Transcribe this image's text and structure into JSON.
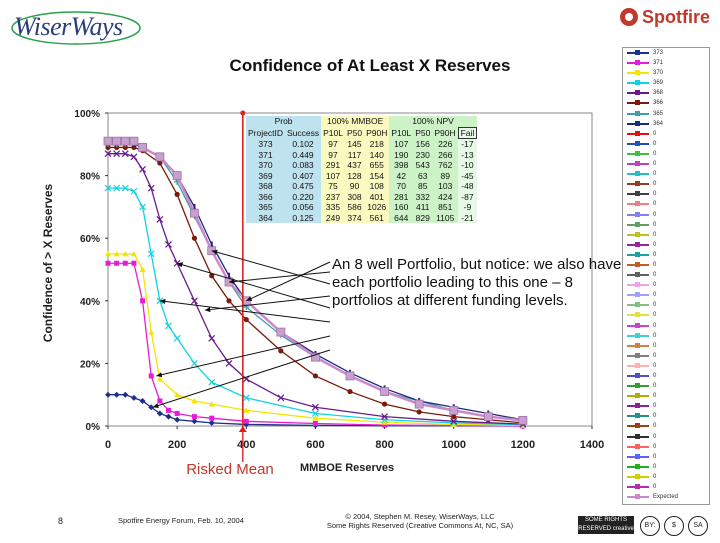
{
  "header": {
    "left_logo": "WiserWays",
    "right_logo": "Spotfire"
  },
  "chart_data": {
    "type": "line",
    "title": "Confidence of At Least X Reserves",
    "xlabel": "MMBOE Reserves",
    "ylabel": "Confidence of > X Reserves",
    "xlim": [
      0,
      1400
    ],
    "ylim": [
      0,
      100
    ],
    "x_ticks": [
      "0",
      "200",
      "400",
      "600",
      "800",
      "1000",
      "1200",
      "1400"
    ],
    "y_ticks": [
      "0%",
      "20%",
      "40%",
      "60%",
      "80%",
      "100%"
    ],
    "marker_line_x": 390,
    "series": [
      {
        "name": "373",
        "color": "#1f2f8c",
        "values": [
          [
            0,
            10
          ],
          [
            25,
            10
          ],
          [
            50,
            10
          ],
          [
            75,
            9
          ],
          [
            100,
            8
          ],
          [
            125,
            6
          ],
          [
            150,
            4
          ],
          [
            175,
            3
          ],
          [
            200,
            2
          ],
          [
            250,
            1.5
          ],
          [
            300,
            1
          ],
          [
            400,
            0.5
          ],
          [
            600,
            0.2
          ],
          [
            800,
            0.1
          ],
          [
            1200,
            0
          ]
        ]
      },
      {
        "name": "371",
        "color": "#e81bd8",
        "values": [
          [
            0,
            52
          ],
          [
            25,
            52
          ],
          [
            50,
            52
          ],
          [
            75,
            52
          ],
          [
            100,
            40
          ],
          [
            125,
            16
          ],
          [
            150,
            8
          ],
          [
            175,
            5
          ],
          [
            200,
            4
          ],
          [
            250,
            3
          ],
          [
            300,
            2.5
          ],
          [
            400,
            1.5
          ],
          [
            600,
            0.8
          ],
          [
            800,
            0.3
          ],
          [
            1200,
            0
          ]
        ]
      },
      {
        "name": "370",
        "color": "#f2e600",
        "values": [
          [
            0,
            55
          ],
          [
            25,
            55
          ],
          [
            50,
            55
          ],
          [
            75,
            55
          ],
          [
            100,
            50
          ],
          [
            125,
            30
          ],
          [
            150,
            15
          ],
          [
            200,
            10
          ],
          [
            250,
            8
          ],
          [
            300,
            7
          ],
          [
            400,
            5
          ],
          [
            600,
            2.5
          ],
          [
            800,
            1.2
          ],
          [
            1000,
            0.5
          ],
          [
            1200,
            0.2
          ]
        ]
      },
      {
        "name": "369",
        "color": "#11d3e0",
        "values": [
          [
            0,
            76
          ],
          [
            25,
            76
          ],
          [
            50,
            76
          ],
          [
            75,
            75
          ],
          [
            100,
            70
          ],
          [
            125,
            55
          ],
          [
            150,
            40
          ],
          [
            175,
            32
          ],
          [
            200,
            28
          ],
          [
            250,
            20
          ],
          [
            300,
            14
          ],
          [
            400,
            9
          ],
          [
            600,
            4
          ],
          [
            800,
            2
          ],
          [
            1000,
            1
          ],
          [
            1200,
            0.4
          ]
        ]
      },
      {
        "name": "368",
        "color": "#6a1a8a",
        "values": [
          [
            0,
            87
          ],
          [
            25,
            87
          ],
          [
            50,
            87
          ],
          [
            75,
            86
          ],
          [
            100,
            82
          ],
          [
            125,
            76
          ],
          [
            150,
            66
          ],
          [
            175,
            58
          ],
          [
            200,
            52
          ],
          [
            250,
            40
          ],
          [
            300,
            28
          ],
          [
            350,
            20
          ],
          [
            400,
            15
          ],
          [
            500,
            9
          ],
          [
            600,
            6
          ],
          [
            800,
            3
          ],
          [
            1000,
            1.5
          ],
          [
            1200,
            0.6
          ]
        ]
      },
      {
        "name": "366",
        "color": "#7a1a0a",
        "values": [
          [
            0,
            89
          ],
          [
            25,
            89
          ],
          [
            50,
            89
          ],
          [
            75,
            89
          ],
          [
            100,
            88
          ],
          [
            150,
            84
          ],
          [
            200,
            74
          ],
          [
            250,
            60
          ],
          [
            300,
            48
          ],
          [
            350,
            40
          ],
          [
            400,
            34
          ],
          [
            500,
            24
          ],
          [
            600,
            16
          ],
          [
            700,
            11
          ],
          [
            800,
            7
          ],
          [
            900,
            4.5
          ],
          [
            1000,
            3
          ],
          [
            1100,
            2
          ],
          [
            1200,
            1
          ]
        ]
      },
      {
        "name": "365",
        "color": "#3aa0a0",
        "values": [
          [
            0,
            90
          ],
          [
            25,
            90
          ],
          [
            50,
            90
          ],
          [
            75,
            90
          ],
          [
            100,
            89
          ],
          [
            150,
            86
          ],
          [
            200,
            78
          ],
          [
            250,
            67
          ],
          [
            300,
            56
          ],
          [
            350,
            46
          ],
          [
            400,
            38
          ],
          [
            500,
            29
          ],
          [
            600,
            22
          ],
          [
            700,
            16
          ],
          [
            800,
            11
          ],
          [
            900,
            8
          ],
          [
            1000,
            5
          ],
          [
            1100,
            3
          ],
          [
            1200,
            2
          ]
        ]
      },
      {
        "name": "364",
        "color": "#1a2a7a",
        "values": [
          [
            0,
            91
          ],
          [
            25,
            91
          ],
          [
            50,
            91
          ],
          [
            75,
            90
          ],
          [
            100,
            89
          ],
          [
            150,
            86
          ],
          [
            200,
            80
          ],
          [
            250,
            70
          ],
          [
            300,
            58
          ],
          [
            350,
            48
          ],
          [
            400,
            40
          ],
          [
            500,
            30
          ],
          [
            600,
            23
          ],
          [
            700,
            17
          ],
          [
            800,
            12
          ],
          [
            900,
            8
          ],
          [
            1000,
            6
          ],
          [
            1100,
            4
          ],
          [
            1200,
            2
          ]
        ]
      },
      {
        "name": "Expected",
        "color": "#cc88cc",
        "values": [
          [
            0,
            91
          ],
          [
            25,
            91
          ],
          [
            50,
            91
          ],
          [
            75,
            91
          ],
          [
            100,
            89
          ],
          [
            150,
            86
          ],
          [
            200,
            80
          ],
          [
            250,
            68
          ],
          [
            300,
            56
          ],
          [
            350,
            46
          ],
          [
            400,
            40
          ],
          [
            500,
            30
          ],
          [
            600,
            22
          ],
          [
            700,
            16
          ],
          [
            800,
            11
          ],
          [
            900,
            7
          ],
          [
            1000,
            5
          ],
          [
            1100,
            3
          ],
          [
            1200,
            1.8
          ]
        ]
      }
    ]
  },
  "table": {
    "group_headers": [
      "Prob",
      "100% MMBOE",
      "100% NPV"
    ],
    "columns": [
      "ProjectID",
      "Success",
      "P10L",
      "P50",
      "P90H",
      "P10L",
      "P50",
      "P90H",
      "Fail"
    ],
    "rows": [
      [
        "373",
        "0.102",
        "97",
        "145",
        "218",
        "107",
        "156",
        "226",
        "-17"
      ],
      [
        "371",
        "0.449",
        "97",
        "117",
        "140",
        "190",
        "230",
        "266",
        "-13"
      ],
      [
        "370",
        "0.083",
        "291",
        "437",
        "655",
        "398",
        "543",
        "762",
        "-10"
      ],
      [
        "369",
        "0.407",
        "107",
        "128",
        "154",
        "42",
        "63",
        "89",
        "-45"
      ],
      [
        "368",
        "0.475",
        "75",
        "90",
        "108",
        "70",
        "85",
        "103",
        "-48"
      ],
      [
        "366",
        "0.220",
        "237",
        "308",
        "401",
        "281",
        "332",
        "424",
        "-87"
      ],
      [
        "365",
        "0.056",
        "335",
        "586",
        "1026",
        "160",
        "411",
        "851",
        "-9"
      ],
      [
        "364",
        "0.125",
        "249",
        "374",
        "561",
        "644",
        "829",
        "1105",
        "-21"
      ]
    ]
  },
  "annotation": "An 8 well Portfolio, but notice: we also have each portfolio leading to this one – 8 portfolios at different funding levels.",
  "risked_mean_label": "Risked Mean",
  "legend": {
    "items": [
      "373",
      "371",
      "370",
      "369",
      "368",
      "366",
      "365",
      "364",
      "0",
      "0",
      "0",
      "0",
      "0",
      "0",
      "0",
      "0",
      "0",
      "0",
      "0",
      "0",
      "0",
      "0",
      "0",
      "0",
      "0",
      "0",
      "0",
      "0",
      "0",
      "0",
      "0",
      "0",
      "0",
      "0",
      "0",
      "0",
      "0",
      "0",
      "0",
      "0",
      "0",
      "0",
      "0",
      "0",
      "Expected"
    ]
  },
  "footer": {
    "page_number": "8",
    "event": "Spotfire Energy Forum, Feb. 10, 2004",
    "copyright_line1": "© 2004, Stephen M. Resey, WiserWays, LLC",
    "copyright_line2": "Some Rights Reserved (Creative Commons At, NC, SA)",
    "cc_badge": "SOME RIGHTS RESERVED creative commons",
    "cc_icons": [
      "BY:",
      "$",
      "SA"
    ]
  }
}
